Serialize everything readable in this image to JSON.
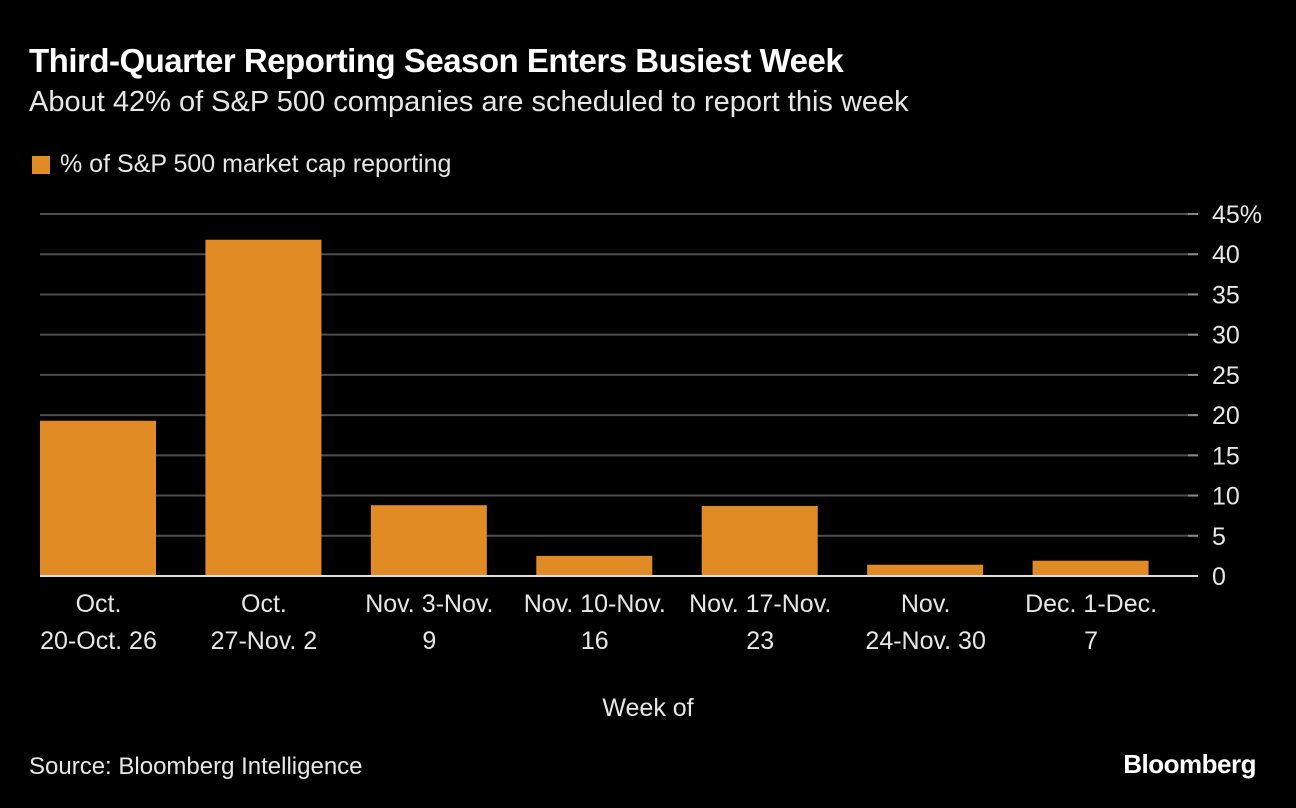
{
  "chart_data": {
    "type": "bar",
    "title": "Third-Quarter Reporting Season Enters Busiest Week",
    "subtitle": "About 42% of S&P 500 companies are scheduled to report this week",
    "categories": [
      [
        "Oct.",
        "20-Oct. 26"
      ],
      [
        "Oct.",
        "27-Nov. 2"
      ],
      [
        "Nov. 3-Nov.",
        "9"
      ],
      [
        "Nov. 10-Nov.",
        "16"
      ],
      [
        "Nov. 17-Nov.",
        "23"
      ],
      [
        "Nov.",
        "24-Nov. 30"
      ],
      [
        "Dec. 1-Dec.",
        "7"
      ]
    ],
    "series": [
      {
        "name": "% of S&P 500 market cap reporting",
        "values": [
          19.3,
          41.8,
          8.8,
          2.5,
          8.7,
          1.4,
          1.9
        ],
        "color": "#e08b24"
      }
    ],
    "xlabel": "Week of",
    "ylabel": "",
    "ylim": [
      0,
      45
    ],
    "yticks": [
      "0",
      "5",
      "10",
      "15",
      "20",
      "25",
      "30",
      "35",
      "40",
      "45%"
    ],
    "grid": true,
    "y_axis_side": "right",
    "legend_position": "top-left"
  },
  "source": "Source: Bloomberg Intelligence",
  "logo": "Bloomberg",
  "colors": {
    "background": "#000000",
    "bar": "#e08b24",
    "grid": "#4d4d4d"
  }
}
